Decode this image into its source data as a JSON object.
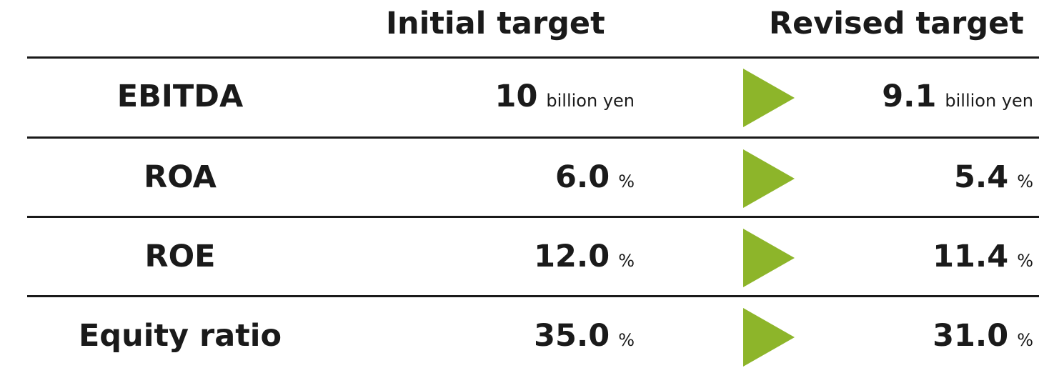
{
  "header": {
    "initial": "Initial target",
    "revised": "Revised target"
  },
  "rows": [
    {
      "label": "EBITDA",
      "initial": "10",
      "initial_unit": "billion yen",
      "revised": "9.1",
      "revised_unit": "billion yen"
    },
    {
      "label": "ROA",
      "initial": "6.0",
      "initial_unit": "%",
      "revised": "5.4",
      "revised_unit": "%"
    },
    {
      "label": "ROE",
      "initial": "12.0",
      "initial_unit": "%",
      "revised": "11.4",
      "revised_unit": "%"
    },
    {
      "label": "Equity ratio",
      "initial": "35.0",
      "initial_unit": "%",
      "revised": "31.0",
      "revised_unit": "%"
    }
  ]
}
